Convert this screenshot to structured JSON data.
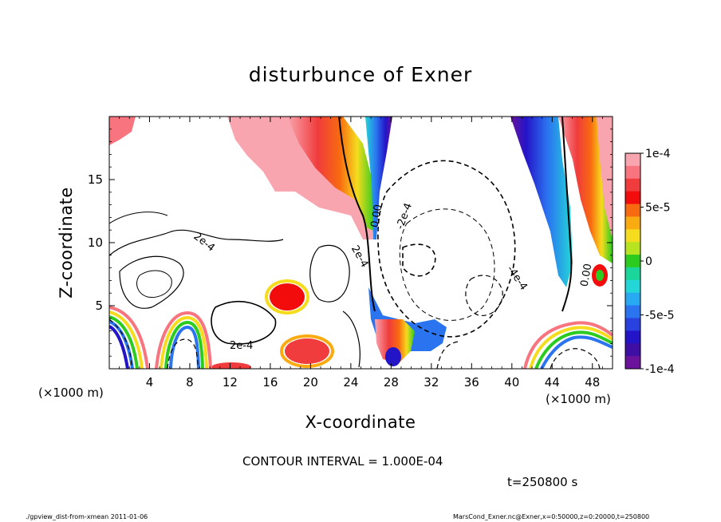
{
  "chart_data": {
    "type": "heatmap",
    "title": "disturbunce of Exner",
    "xlabel": "X-coordinate",
    "ylabel": "Z-coordinate",
    "x_unit": "(×1000 m)",
    "x_unit_right": "(×1000 m)",
    "xlim": [
      0,
      50
    ],
    "ylim": [
      0,
      20
    ],
    "x_ticks": [
      "4",
      "8",
      "12",
      "16",
      "20",
      "24",
      "28",
      "32",
      "36",
      "40",
      "44",
      "48"
    ],
    "y_ticks": [
      "5",
      "10",
      "15"
    ],
    "colorbar": {
      "min": -0.0001,
      "max": 0.0001,
      "tick_labels": [
        "1e-4",
        "5e-5",
        "0",
        "-5e-5",
        "-1e-4"
      ],
      "colors": [
        "#f9a5b0",
        "#f8747f",
        "#f03c3c",
        "#f20c0c",
        "#f86a10",
        "#fbab12",
        "#f5dc1e",
        "#b7e320",
        "#2bcb1f",
        "#1bd69b",
        "#23d7d8",
        "#27aaf2",
        "#2b74f0",
        "#2942df",
        "#2414c8",
        "#3f0ea4",
        "#6b139c"
      ]
    },
    "contour_labels": [
      "2e-4",
      "2e-4",
      "2e-4",
      "0.00",
      "-2e-4",
      "-4e-4",
      "0.00"
    ],
    "contour_interval": "CONTOUR INTERVAL = 1.000E-04",
    "time": "t=250800 s"
  },
  "footer": {
    "left": "./gpview_dist-from-xmean 2011-01-06",
    "right": "MarsCond_Exner.nc@Exner,x=0:50000,z=0:20000,t=250800"
  }
}
